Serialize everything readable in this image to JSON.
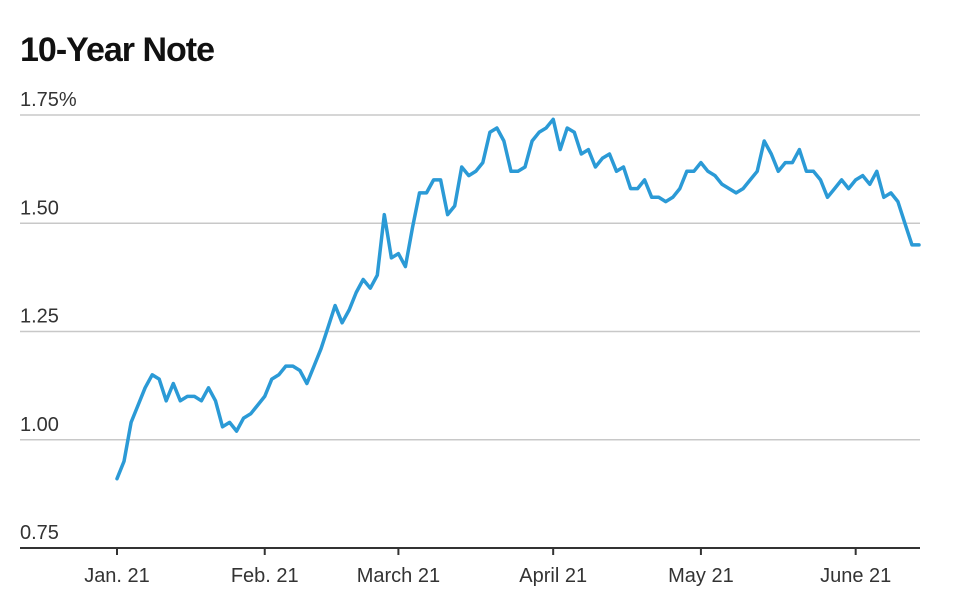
{
  "colors": {
    "line": "#2b9ad6",
    "grid": "#c8c8c8",
    "axis": "#333333",
    "text": "#333333"
  },
  "chart_data": {
    "type": "line",
    "title": "10-Year Note",
    "xlabel": "",
    "ylabel": "",
    "ylim": [
      0.75,
      1.75
    ],
    "y_ticks": [
      {
        "value": 1.75,
        "label": "1.75%"
      },
      {
        "value": 1.5,
        "label": "1.50"
      },
      {
        "value": 1.25,
        "label": "1.25"
      },
      {
        "value": 1.0,
        "label": "1.00"
      },
      {
        "value": 0.75,
        "label": "0.75"
      }
    ],
    "x_ticks": [
      {
        "index": 0,
        "label": "Jan. 21"
      },
      {
        "index": 21,
        "label": "Feb. 21"
      },
      {
        "index": 40,
        "label": "March 21"
      },
      {
        "index": 62,
        "label": "April 21"
      },
      {
        "index": 83,
        "label": "May 21"
      },
      {
        "index": 105,
        "label": "June 21"
      }
    ],
    "grid": true,
    "legend": "none",
    "series": [
      {
        "values": [
          0.91,
          0.95,
          1.04,
          1.08,
          1.12,
          1.15,
          1.14,
          1.09,
          1.13,
          1.09,
          1.1,
          1.1,
          1.09,
          1.12,
          1.09,
          1.03,
          1.04,
          1.02,
          1.05,
          1.06,
          1.08,
          1.1,
          1.14,
          1.15,
          1.17,
          1.17,
          1.16,
          1.13,
          1.17,
          1.21,
          1.26,
          1.31,
          1.27,
          1.3,
          1.34,
          1.37,
          1.35,
          1.38,
          1.52,
          1.42,
          1.43,
          1.4,
          1.49,
          1.57,
          1.57,
          1.6,
          1.6,
          1.52,
          1.54,
          1.63,
          1.61,
          1.62,
          1.64,
          1.71,
          1.72,
          1.69,
          1.62,
          1.62,
          1.63,
          1.69,
          1.71,
          1.72,
          1.74,
          1.67,
          1.72,
          1.71,
          1.66,
          1.67,
          1.63,
          1.65,
          1.66,
          1.62,
          1.63,
          1.58,
          1.58,
          1.6,
          1.56,
          1.56,
          1.55,
          1.56,
          1.58,
          1.62,
          1.62,
          1.64,
          1.62,
          1.61,
          1.59,
          1.58,
          1.57,
          1.58,
          1.6,
          1.62,
          1.69,
          1.66,
          1.62,
          1.64,
          1.64,
          1.67,
          1.62,
          1.62,
          1.6,
          1.56,
          1.58,
          1.6,
          1.58,
          1.6,
          1.61,
          1.59,
          1.62,
          1.56,
          1.57,
          1.55,
          1.5,
          1.45,
          1.45
        ]
      }
    ]
  }
}
